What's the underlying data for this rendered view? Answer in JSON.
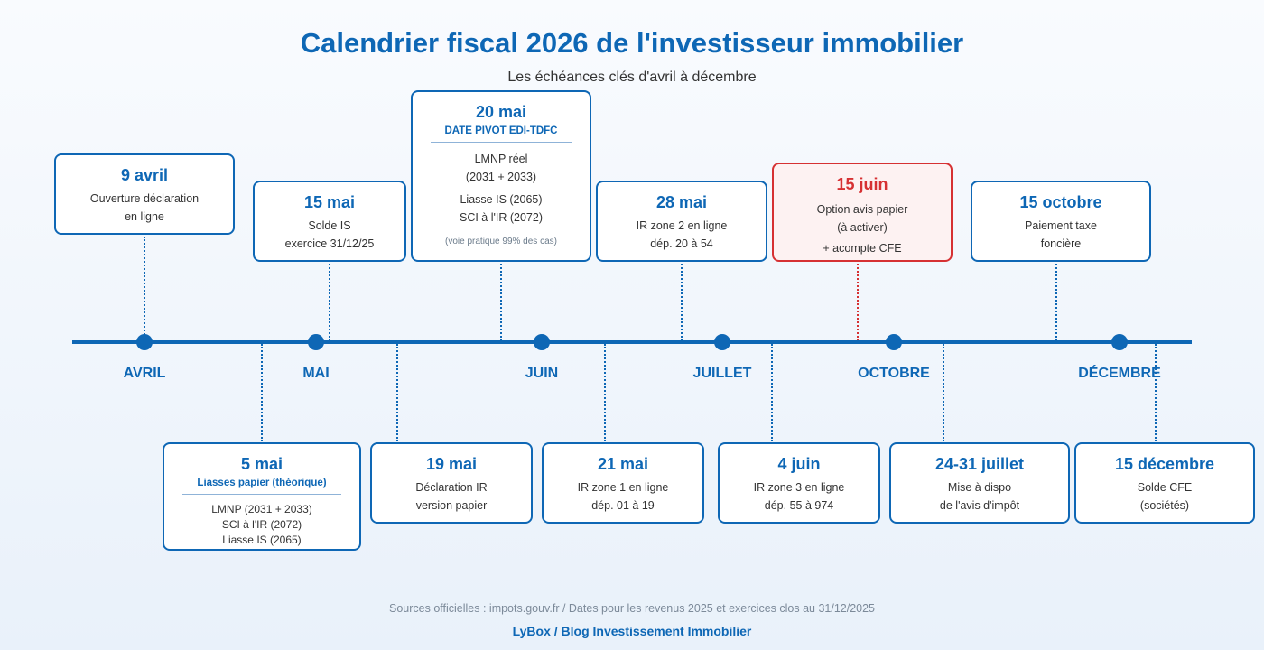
{
  "header": {
    "title": "Calendrier fiscal 2026 de l'investisseur immobilier",
    "subtitle": "Les échéances clés d'avril à décembre"
  },
  "months": [
    "AVRIL",
    "MAI",
    "JUIN",
    "JUILLET",
    "OCTOBRE",
    "DÉCEMBRE"
  ],
  "events_top": [
    {
      "date": "9 avril",
      "lines": [
        "Ouverture déclaration",
        "en ligne"
      ]
    },
    {
      "date": "15 mai",
      "lines": [
        "Solde IS",
        "exercice 31/12/25"
      ]
    },
    {
      "date": "20 mai",
      "tag": "DATE PIVOT EDI-TDFC",
      "lines": [
        "LMNP réel",
        "(2031 + 2033)",
        "Liasse IS (2065)",
        "SCI à l'IR (2072)"
      ],
      "note": "(voie pratique 99% des cas)"
    },
    {
      "date": "28 mai",
      "lines": [
        "IR zone 2 en ligne",
        "dép. 20 à 54"
      ]
    },
    {
      "date": "15 juin",
      "lines": [
        "Option avis papier",
        "(à activer)",
        "+ acompte CFE"
      ],
      "highlight": true
    },
    {
      "date": "15 octobre",
      "lines": [
        "Paiement taxe",
        "foncière"
      ]
    }
  ],
  "events_bottom": [
    {
      "date": "5 mai",
      "tag": "Liasses papier (théorique)",
      "lines": [
        "LMNP (2031 + 2033)",
        "SCI à l'IR (2072)",
        "Liasse IS (2065)"
      ]
    },
    {
      "date": "19 mai",
      "lines": [
        "Déclaration IR",
        "version papier"
      ]
    },
    {
      "date": "21 mai",
      "lines": [
        "IR zone 1 en ligne",
        "dép. 01 à 19"
      ]
    },
    {
      "date": "4 juin",
      "lines": [
        "IR zone 3 en ligne",
        "dép. 55 à 974"
      ]
    },
    {
      "date": "24-31 juillet",
      "lines": [
        "Mise à dispo",
        "de l'avis d'impôt"
      ]
    },
    {
      "date": "15 décembre",
      "lines": [
        "Solde CFE",
        "(sociétés)"
      ]
    }
  ],
  "footer": {
    "sources": "Sources officielles : impots.gouv.fr / Dates pour les revenus 2025 et exercices clos au 31/12/2025",
    "brand": "LyBox / Blog Investissement Immobilier"
  },
  "colors": {
    "accent": "#0e67b5",
    "highlight": "#d63133"
  }
}
